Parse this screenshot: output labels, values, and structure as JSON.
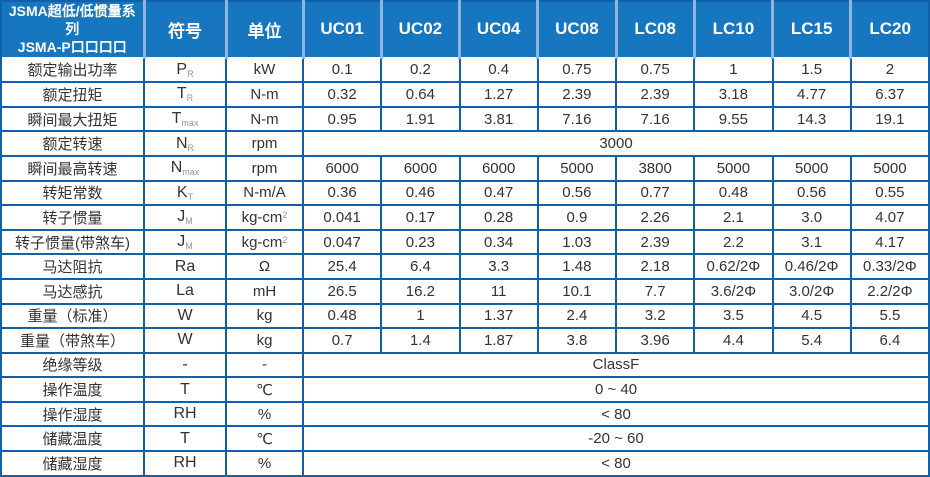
{
  "colors": {
    "header_bg": "#1677c0",
    "header_divider": "#8fb4de",
    "border": "#1160aa",
    "text": "#333333",
    "header_text": "#ffffff"
  },
  "header": {
    "title_line1": "JSMA超低/低惯量系列",
    "title_line2": "JSMA-P口口口口",
    "symbol_col": "符号",
    "unit_col": "单位",
    "models": [
      "UC01",
      "UC02",
      "UC04",
      "UC08",
      "LC08",
      "LC10",
      "LC15",
      "LC20"
    ]
  },
  "rows": [
    {
      "label": "额定输出功率",
      "symbol": "P",
      "symbol_sub": "R",
      "unit": "kW",
      "values": [
        "0.1",
        "0.2",
        "0.4",
        "0.75",
        "0.75",
        "1",
        "1.5",
        "2"
      ]
    },
    {
      "label": "额定扭矩",
      "symbol": "T",
      "symbol_sub": "R",
      "unit": "N-m",
      "values": [
        "0.32",
        "0.64",
        "1.27",
        "2.39",
        "2.39",
        "3.18",
        "4.77",
        "6.37"
      ]
    },
    {
      "label": "瞬间最大扭矩",
      "symbol": "T",
      "symbol_sub": "max",
      "unit": "N-m",
      "values": [
        "0.95",
        "1.91",
        "3.81",
        "7.16",
        "7.16",
        "9.55",
        "14.3",
        "19.1"
      ]
    },
    {
      "label": "额定转速",
      "symbol": "N",
      "symbol_sub": "R",
      "unit": "rpm",
      "span": "3000"
    },
    {
      "label": "瞬间最高转速",
      "symbol": "N",
      "symbol_sub": "max",
      "unit": "rpm",
      "values": [
        "6000",
        "6000",
        "6000",
        "5000",
        "3800",
        "5000",
        "5000",
        "5000"
      ]
    },
    {
      "label": "转矩常数",
      "symbol": "K",
      "symbol_sub": "T",
      "unit": "N-m/A",
      "values": [
        "0.36",
        "0.46",
        "0.47",
        "0.56",
        "0.77",
        "0.48",
        "0.56",
        "0.55"
      ]
    },
    {
      "label": "转子惯量",
      "symbol": "J",
      "symbol_sub": "M",
      "unit": "kg-cm",
      "unit_sup": "2",
      "values": [
        "0.041",
        "0.17",
        "0.28",
        "0.9",
        "2.26",
        "2.1",
        "3.0",
        "4.07"
      ]
    },
    {
      "label": "转子惯量(带煞车)",
      "symbol": "J",
      "symbol_sub": "M",
      "unit": "kg-cm",
      "unit_sup": "2",
      "values": [
        "0.047",
        "0.23",
        "0.34",
        "1.03",
        "2.39",
        "2.2",
        "3.1",
        "4.17"
      ]
    },
    {
      "label": "马达阻抗",
      "symbol": "Ra",
      "unit": "Ω",
      "values": [
        "25.4",
        "6.4",
        "3.3",
        "1.48",
        "2.18",
        "0.62/2Φ",
        "0.46/2Φ",
        "0.33/2Φ"
      ]
    },
    {
      "label": "马达感抗",
      "symbol": "La",
      "unit": "mH",
      "values": [
        "26.5",
        "16.2",
        "11",
        "10.1",
        "7.7",
        "3.6/2Φ",
        "3.0/2Φ",
        "2.2/2Φ"
      ]
    },
    {
      "label": "重量（标准）",
      "symbol": "W",
      "unit": "kg",
      "values": [
        "0.48",
        "1",
        "1.37",
        "2.4",
        "3.2",
        "3.5",
        "4.5",
        "5.5"
      ]
    },
    {
      "label": "重量（带煞车）",
      "symbol": "W",
      "unit": "kg",
      "values": [
        "0.7",
        "1.4",
        "1.87",
        "3.8",
        "3.96",
        "4.4",
        "5.4",
        "6.4"
      ]
    },
    {
      "label": "绝缘等级",
      "symbol": "-",
      "unit": "-",
      "span": "ClassF"
    },
    {
      "label": "操作温度",
      "symbol": "T",
      "unit": "℃",
      "span": "0 ~ 40"
    },
    {
      "label": "操作湿度",
      "symbol": "RH",
      "unit": "%",
      "span": "< 80"
    },
    {
      "label": "储藏温度",
      "symbol": "T",
      "unit": "℃",
      "span": "-20 ~ 60"
    },
    {
      "label": "储藏湿度",
      "symbol": "RH",
      "unit": "%",
      "span": "< 80"
    }
  ]
}
